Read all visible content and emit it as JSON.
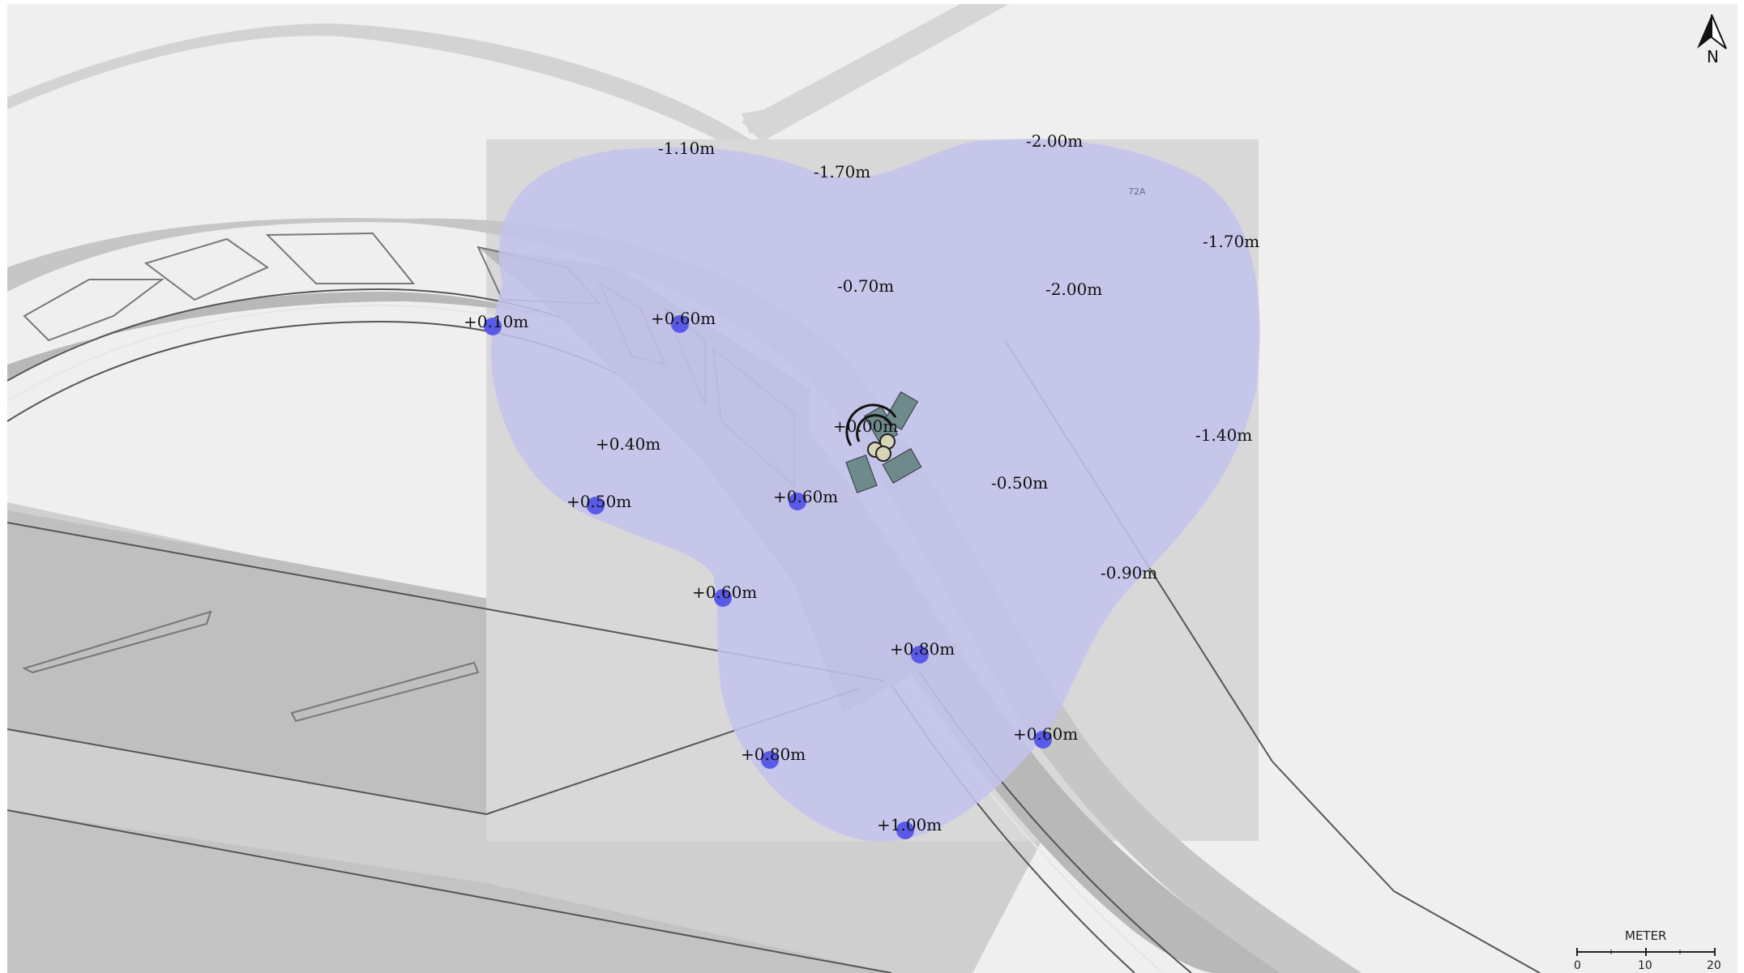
{
  "map": {
    "building_label": "72A",
    "compass_label": "N",
    "scale": {
      "unit": "METER",
      "ticks": [
        "0",
        "10",
        "20"
      ]
    }
  },
  "measurements": [
    {
      "text": "-1.10m"
    },
    {
      "text": "-1.70m"
    },
    {
      "text": "-2.00m"
    },
    {
      "text": "-1.70m"
    },
    {
      "text": "-0.70m"
    },
    {
      "text": "-2.00m"
    },
    {
      "text": "+0.10m",
      "marker": true
    },
    {
      "text": "+0.60m",
      "marker": true
    },
    {
      "text": "+0.00m"
    },
    {
      "text": "+0.40m"
    },
    {
      "text": "-1.40m"
    },
    {
      "text": "+0.50m",
      "marker": true
    },
    {
      "text": "+0.60m",
      "marker": true
    },
    {
      "text": "-0.50m"
    },
    {
      "text": "-0.90m"
    },
    {
      "text": "+0.60m",
      "marker": true
    },
    {
      "text": "+0.80m",
      "marker": true
    },
    {
      "text": "+0.60m",
      "marker": true
    },
    {
      "text": "+0.80m",
      "marker": true
    },
    {
      "text": "+1.00m",
      "marker": true
    }
  ],
  "colors": {
    "coverage_fill": "#c3c3ed",
    "marker_fill": "#5a5ae8",
    "map_background": "#eeeeee",
    "road_fill": "#bdbdbd"
  }
}
